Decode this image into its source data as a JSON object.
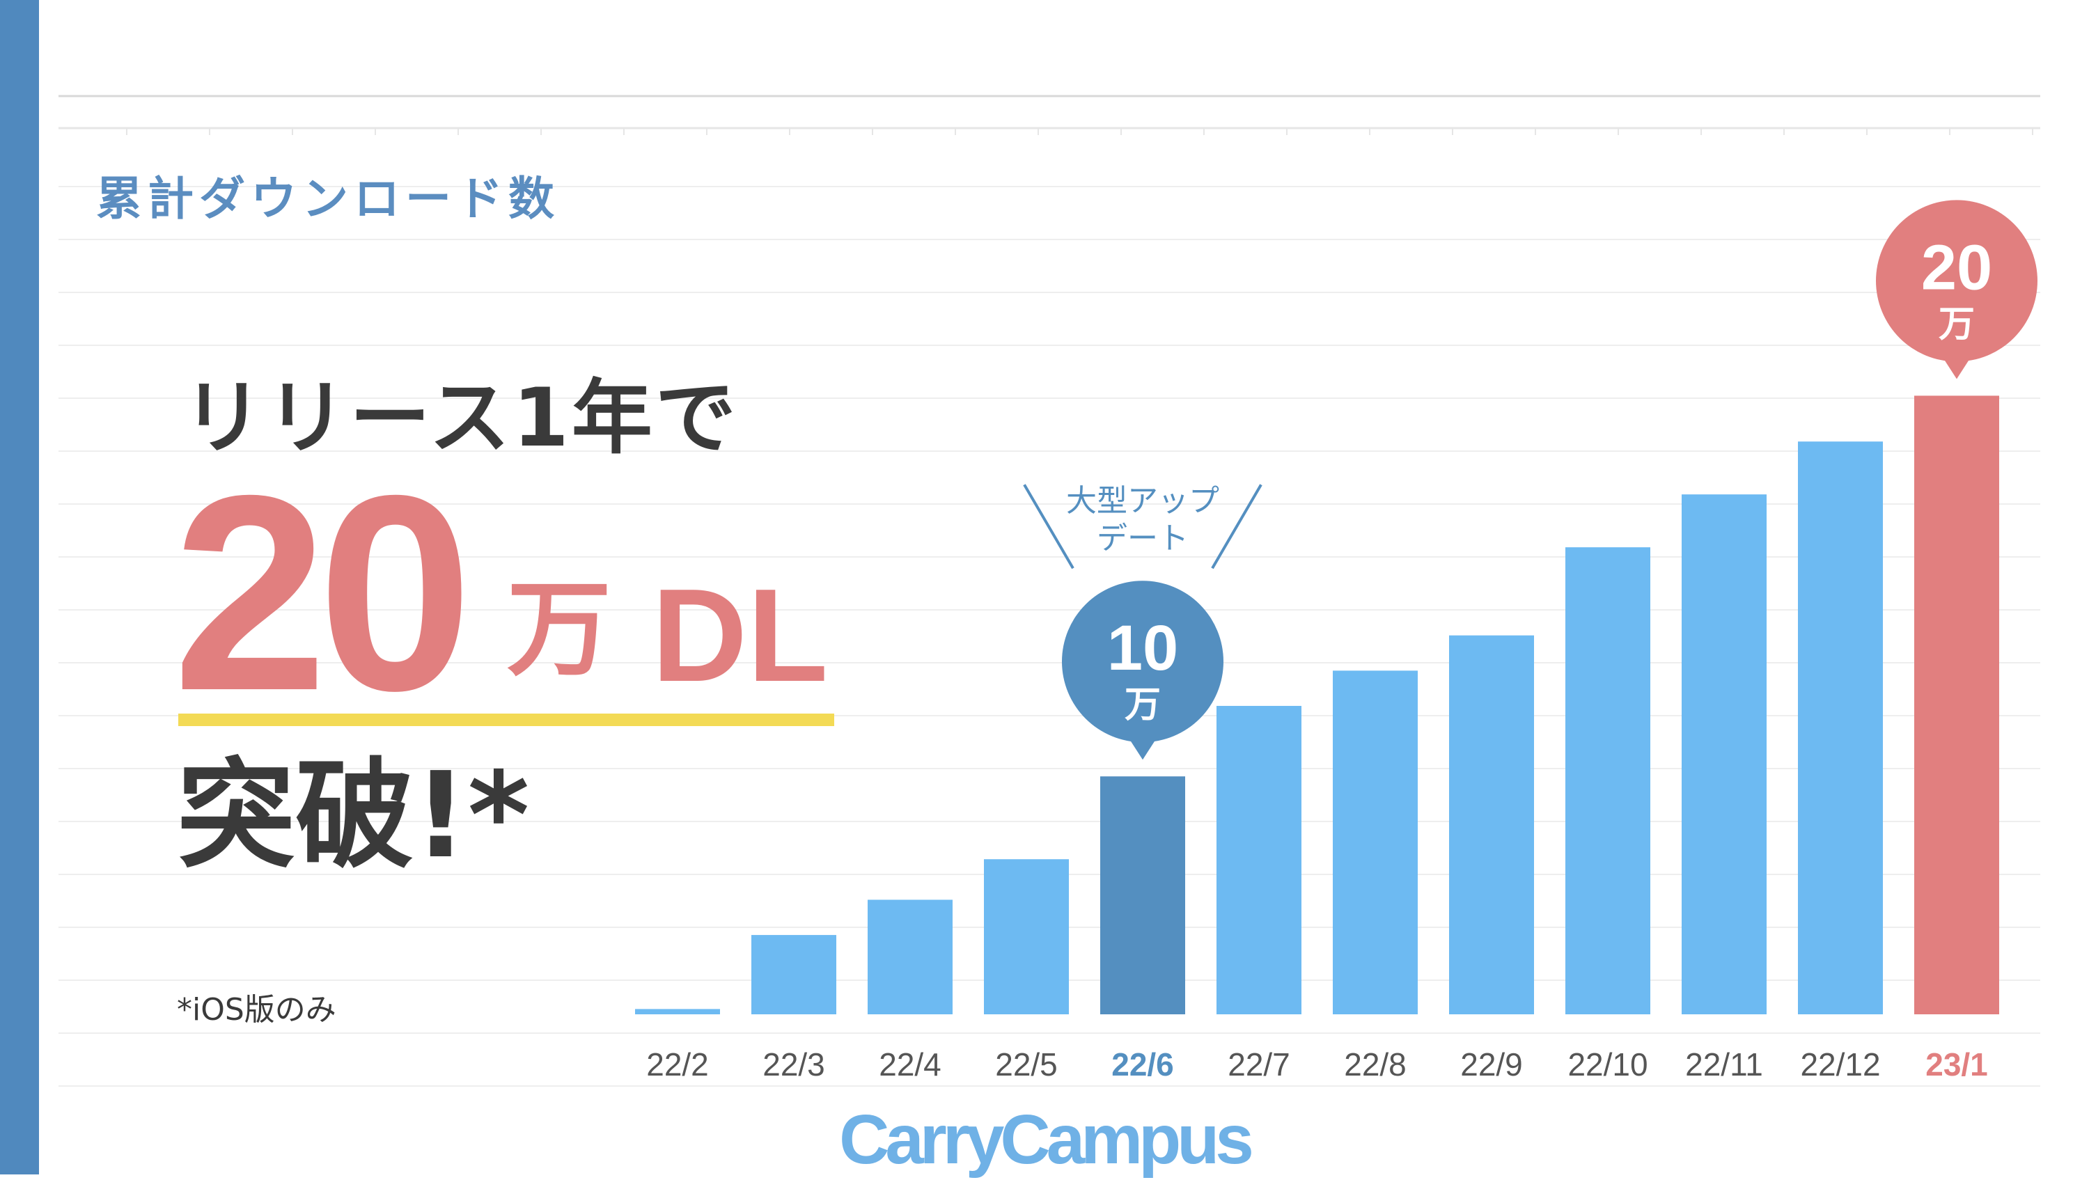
{
  "title": "累計ダウンロード数",
  "headline": {
    "line1": "リリース1年で",
    "big_number": "20",
    "big_unit": "万",
    "big_suffix": "DL",
    "line3": "突破!*"
  },
  "footnote": "*iOS版のみ",
  "logo": "CarryCampus",
  "colors": {
    "stripe": "#5089BE",
    "bar": "#6DBAF2",
    "bar_update": "#548FC0",
    "bar_latest": "#E17F7F",
    "title": "#5B8DC0",
    "highlight_underline": "#F3DA55"
  },
  "chart_data": {
    "type": "bar",
    "categories": [
      "22/2",
      "22/3",
      "22/4",
      "22/5",
      "22/6",
      "22/7",
      "22/8",
      "22/9",
      "22/10",
      "22/11",
      "22/12",
      "23/1"
    ],
    "values": [
      0.3,
      4.5,
      6.5,
      8.8,
      13.5,
      17.5,
      19.5,
      21.5,
      26.5,
      29.5,
      32.5,
      35.1
    ],
    "highlight": {
      "22/6": "update",
      "23/1": "latest"
    },
    "annotations": [
      {
        "category": "22/6",
        "bubble_number": "10",
        "bubble_unit": "万",
        "callout": [
          "大型アップ",
          "デート"
        ]
      },
      {
        "category": "23/1",
        "bubble_number": "20",
        "bubble_unit": "万"
      }
    ],
    "ylim": [
      0,
      38
    ],
    "grid": true,
    "xlabel": "",
    "ylabel": ""
  }
}
